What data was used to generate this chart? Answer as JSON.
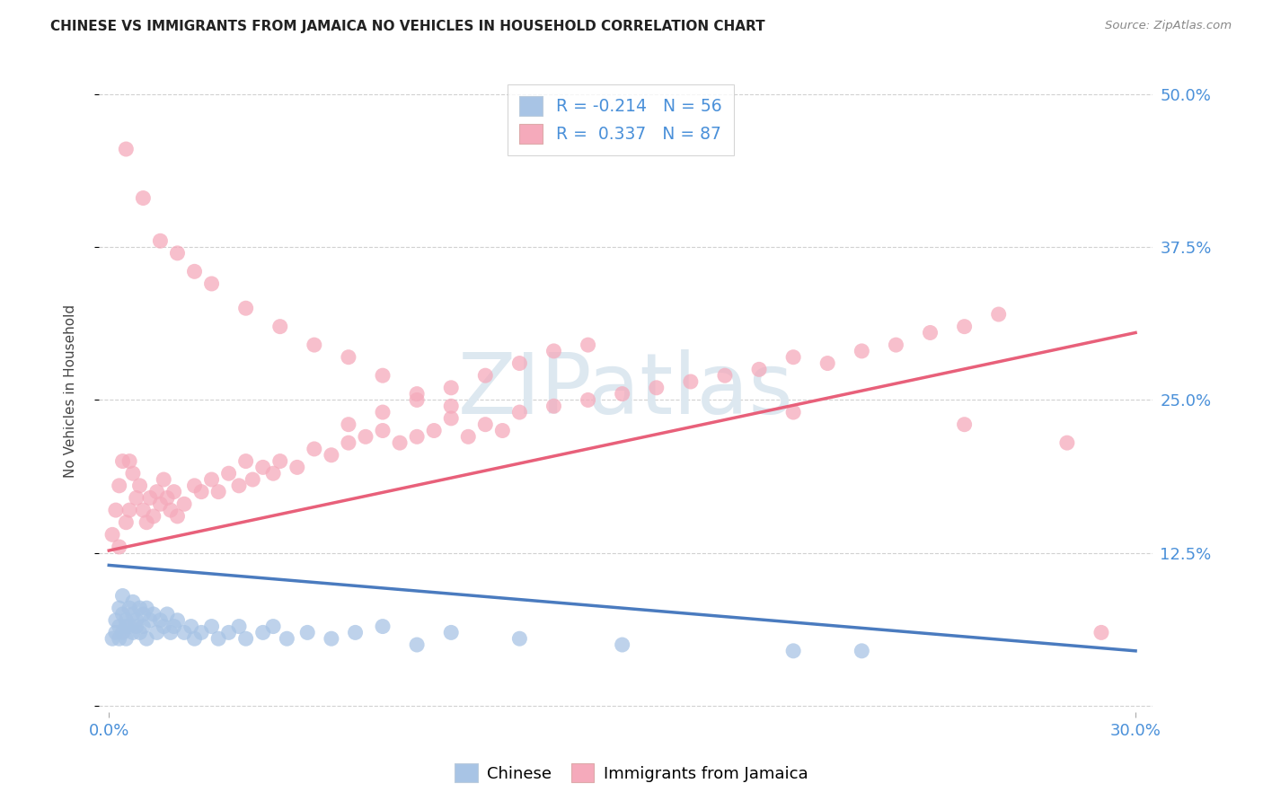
{
  "title": "CHINESE VS IMMIGRANTS FROM JAMAICA NO VEHICLES IN HOUSEHOLD CORRELATION CHART",
  "source": "Source: ZipAtlas.com",
  "ylabel_label": "No Vehicles in Household",
  "legend_labels": [
    "Chinese",
    "Immigrants from Jamaica"
  ],
  "r_chinese": -0.214,
  "n_chinese": 56,
  "r_jamaica": 0.337,
  "n_jamaica": 87,
  "blue_color": "#a8c4e5",
  "pink_color": "#f5aabb",
  "blue_line_color": "#4a7bbf",
  "pink_line_color": "#e8607a",
  "title_color": "#222222",
  "axis_label_color": "#4a90d9",
  "watermark_color": "#dde8f0",
  "xlim": [
    0.0,
    0.3
  ],
  "ylim": [
    0.0,
    0.5
  ],
  "yticks": [
    0.0,
    0.125,
    0.25,
    0.375,
    0.5
  ],
  "ytick_labels": [
    "",
    "12.5%",
    "25.0%",
    "37.5%",
    "50.0%"
  ],
  "xticks": [
    0.0,
    0.3
  ],
  "xtick_labels": [
    "0.0%",
    "30.0%"
  ],
  "blue_line_x": [
    0.0,
    0.3
  ],
  "blue_line_y": [
    0.115,
    0.045
  ],
  "pink_line_x": [
    0.0,
    0.3
  ],
  "pink_line_y": [
    0.127,
    0.305
  ],
  "chinese_x": [
    0.001,
    0.002,
    0.002,
    0.003,
    0.003,
    0.003,
    0.004,
    0.004,
    0.004,
    0.005,
    0.005,
    0.005,
    0.006,
    0.006,
    0.007,
    0.007,
    0.007,
    0.008,
    0.008,
    0.009,
    0.009,
    0.01,
    0.01,
    0.011,
    0.011,
    0.012,
    0.013,
    0.014,
    0.015,
    0.016,
    0.017,
    0.018,
    0.019,
    0.02,
    0.022,
    0.024,
    0.025,
    0.027,
    0.03,
    0.032,
    0.035,
    0.038,
    0.04,
    0.045,
    0.048,
    0.052,
    0.058,
    0.065,
    0.072,
    0.08,
    0.09,
    0.1,
    0.12,
    0.15,
    0.2,
    0.22
  ],
  "chinese_y": [
    0.055,
    0.07,
    0.06,
    0.08,
    0.065,
    0.055,
    0.075,
    0.06,
    0.09,
    0.07,
    0.065,
    0.055,
    0.08,
    0.065,
    0.075,
    0.06,
    0.085,
    0.07,
    0.065,
    0.08,
    0.06,
    0.075,
    0.065,
    0.08,
    0.055,
    0.07,
    0.075,
    0.06,
    0.07,
    0.065,
    0.075,
    0.06,
    0.065,
    0.07,
    0.06,
    0.065,
    0.055,
    0.06,
    0.065,
    0.055,
    0.06,
    0.065,
    0.055,
    0.06,
    0.065,
    0.055,
    0.06,
    0.055,
    0.06,
    0.065,
    0.05,
    0.06,
    0.055,
    0.05,
    0.045,
    0.045
  ],
  "jamaica_x": [
    0.001,
    0.002,
    0.003,
    0.003,
    0.004,
    0.005,
    0.006,
    0.006,
    0.007,
    0.008,
    0.009,
    0.01,
    0.011,
    0.012,
    0.013,
    0.014,
    0.015,
    0.016,
    0.017,
    0.018,
    0.019,
    0.02,
    0.022,
    0.025,
    0.027,
    0.03,
    0.032,
    0.035,
    0.038,
    0.04,
    0.042,
    0.045,
    0.048,
    0.05,
    0.055,
    0.06,
    0.065,
    0.07,
    0.075,
    0.08,
    0.085,
    0.09,
    0.095,
    0.1,
    0.105,
    0.11,
    0.115,
    0.12,
    0.13,
    0.14,
    0.15,
    0.16,
    0.17,
    0.18,
    0.19,
    0.2,
    0.21,
    0.22,
    0.23,
    0.24,
    0.25,
    0.26,
    0.07,
    0.08,
    0.09,
    0.1,
    0.11,
    0.12,
    0.13,
    0.14,
    0.005,
    0.01,
    0.015,
    0.02,
    0.025,
    0.03,
    0.04,
    0.05,
    0.06,
    0.07,
    0.08,
    0.09,
    0.1,
    0.2,
    0.25,
    0.28,
    0.29
  ],
  "jamaica_y": [
    0.14,
    0.16,
    0.18,
    0.13,
    0.2,
    0.15,
    0.2,
    0.16,
    0.19,
    0.17,
    0.18,
    0.16,
    0.15,
    0.17,
    0.155,
    0.175,
    0.165,
    0.185,
    0.17,
    0.16,
    0.175,
    0.155,
    0.165,
    0.18,
    0.175,
    0.185,
    0.175,
    0.19,
    0.18,
    0.2,
    0.185,
    0.195,
    0.19,
    0.2,
    0.195,
    0.21,
    0.205,
    0.215,
    0.22,
    0.225,
    0.215,
    0.22,
    0.225,
    0.235,
    0.22,
    0.23,
    0.225,
    0.24,
    0.245,
    0.25,
    0.255,
    0.26,
    0.265,
    0.27,
    0.275,
    0.285,
    0.28,
    0.29,
    0.295,
    0.305,
    0.31,
    0.32,
    0.23,
    0.24,
    0.25,
    0.26,
    0.27,
    0.28,
    0.29,
    0.295,
    0.455,
    0.415,
    0.38,
    0.37,
    0.355,
    0.345,
    0.325,
    0.31,
    0.295,
    0.285,
    0.27,
    0.255,
    0.245,
    0.24,
    0.23,
    0.215,
    0.06
  ]
}
